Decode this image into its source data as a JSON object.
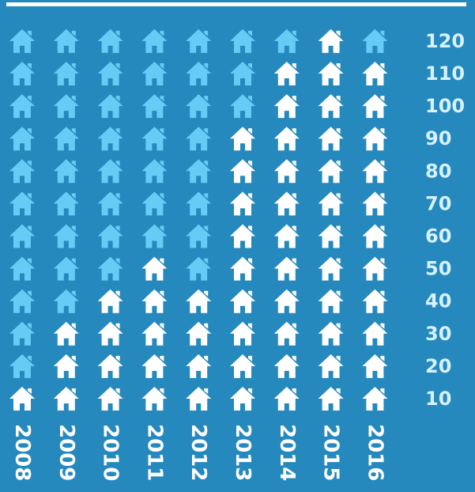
{
  "chart_data": {
    "type": "bar",
    "categories": [
      "2008",
      "2009",
      "2010",
      "2011",
      "2012",
      "2013",
      "2014",
      "2015",
      "2016"
    ],
    "values": [
      10,
      30,
      40,
      50,
      40,
      90,
      110,
      120,
      110
    ],
    "y_ticks": [
      10,
      20,
      30,
      40,
      50,
      60,
      70,
      80,
      90,
      100,
      110,
      120
    ],
    "ylim": [
      0,
      120
    ],
    "unit_per_icon": 10,
    "title": "",
    "xlabel": "",
    "ylabel": "",
    "legend": "none",
    "colors": {
      "background": "#2589bd",
      "filled_icon": "#ffffff",
      "empty_icon": "#67ccf5",
      "tick_label": "#d6f1ff",
      "top_rule": "#ffffff"
    },
    "icon": "house-icon"
  }
}
